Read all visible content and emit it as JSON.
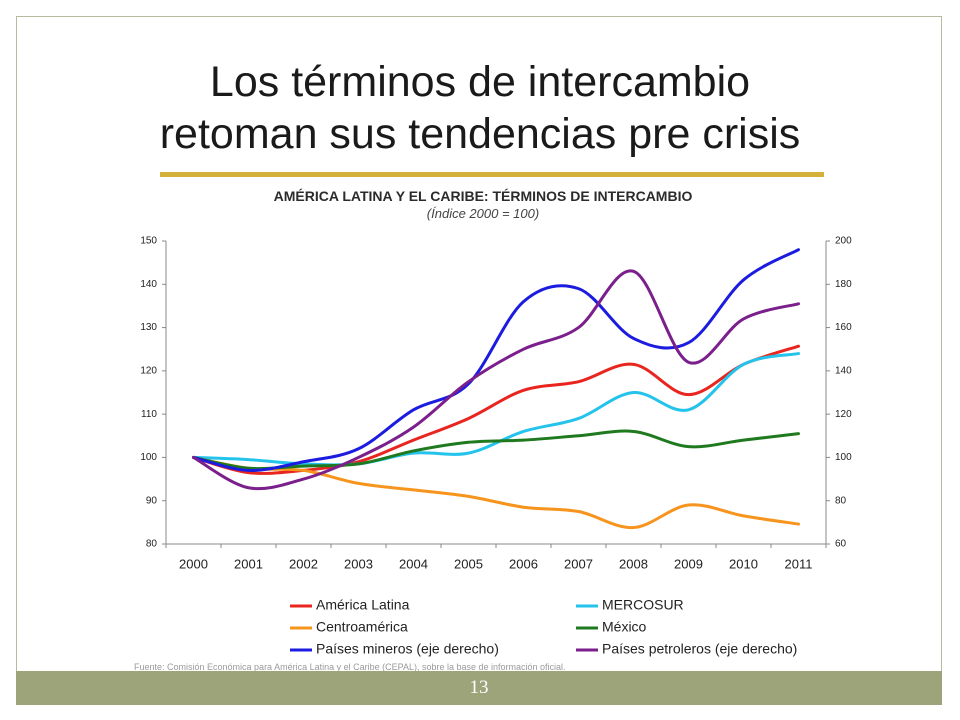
{
  "slide": {
    "title_line1": "Los términos de intercambio",
    "title_line2": "retoman sus tendencias pre crisis",
    "source_note": "Fuente: Comisión Económica para América Latina y el Caribe (CEPAL), sobre la base de información oficial.",
    "page_number": "13",
    "colors": {
      "accent_rule": "#d4b23a",
      "footer": "#9ea47a"
    }
  },
  "chart_data": {
    "type": "line",
    "title": "AMÉRICA LATINA Y EL CARIBE: TÉRMINOS DE INTERCAMBIO",
    "subtitle": "(Índice 2000 = 100)",
    "x": [
      "2000",
      "2001",
      "2002",
      "2003",
      "2004",
      "2005",
      "2006",
      "2007",
      "2008",
      "2009",
      "2010",
      "2011"
    ],
    "y_left": {
      "ylim": [
        80,
        150
      ],
      "ticks": [
        "80",
        "90",
        "100",
        "110",
        "120",
        "130",
        "140",
        "150"
      ]
    },
    "y_right": {
      "ylim": [
        60,
        200
      ],
      "ticks": [
        "60",
        "80",
        "100",
        "120",
        "140",
        "160",
        "180",
        "200"
      ]
    },
    "grid": false,
    "legend_placement": "bottom",
    "series": [
      {
        "name": "América Latina",
        "color": "#e8251f",
        "axis": "left",
        "values": [
          100,
          96.5,
          97,
          99,
          104,
          109,
          115.5,
          117.5,
          121.5,
          114.5,
          121.5,
          125.7
        ]
      },
      {
        "name": "MERCOSUR",
        "color": "#23c3ec",
        "axis": "left",
        "values": [
          100,
          99.5,
          98.5,
          98.5,
          101,
          101,
          106,
          109,
          115,
          111,
          121.5,
          124
        ]
      },
      {
        "name": "Centroamérica",
        "color": "#f7941d",
        "axis": "left",
        "values": [
          100,
          97.5,
          97,
          94,
          92.5,
          91,
          88.5,
          87.5,
          83.8,
          89,
          86.5,
          84.6
        ]
      },
      {
        "name": "México",
        "color": "#1f7a1f",
        "axis": "left",
        "values": [
          100,
          97.5,
          98,
          98.5,
          101.5,
          103.5,
          104,
          105,
          106,
          102.5,
          104,
          105.5
        ]
      },
      {
        "name": "Países mineros (eje derecho)",
        "color": "#1c1ce0",
        "axis": "right",
        "values": [
          100,
          94,
          98,
          104,
          122,
          134,
          172,
          178,
          155,
          153,
          182,
          196
        ]
      },
      {
        "name": "Países petroleros (eje derecho)",
        "color": "#7a1f8c",
        "axis": "right",
        "values": [
          100,
          86,
          90,
          100,
          114,
          135,
          150,
          160,
          186,
          144,
          164,
          171
        ]
      }
    ]
  }
}
